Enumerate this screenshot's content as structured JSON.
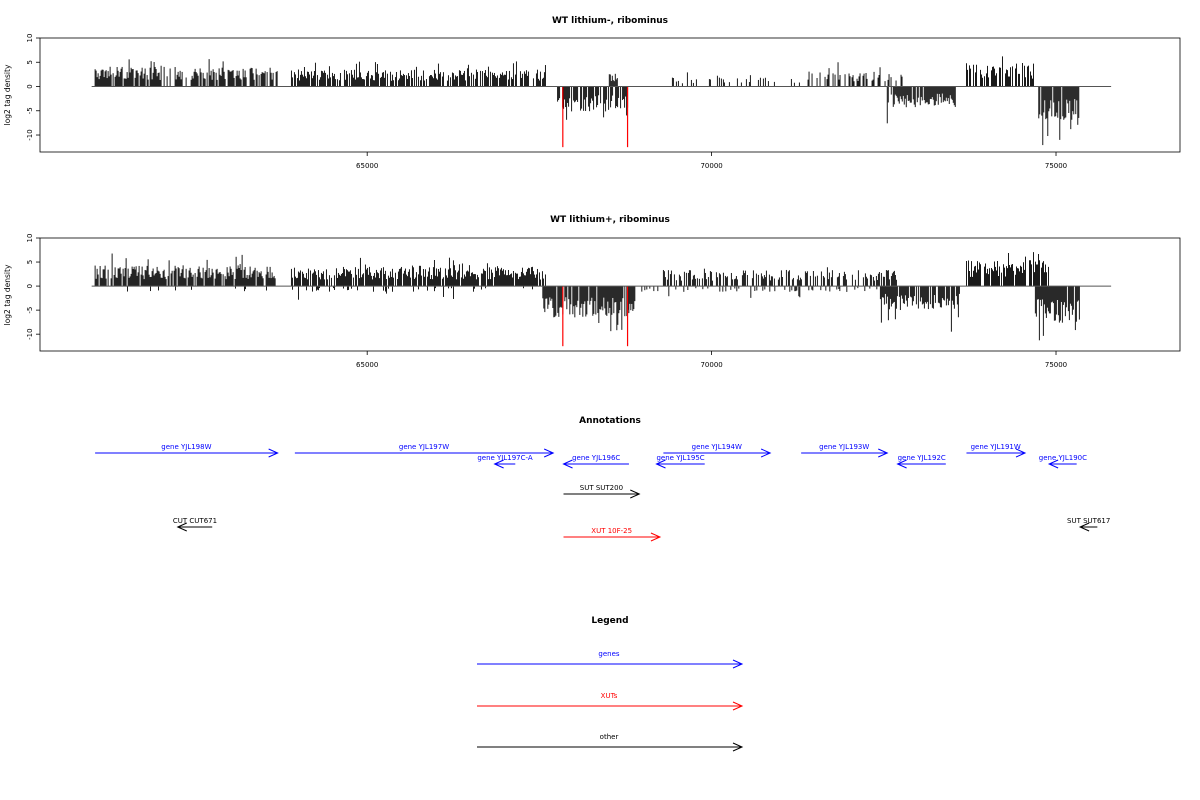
{
  "chart_data": [
    {
      "type": "bar",
      "title": "WT lithium-, ribominus",
      "ylabel": "log2 tag density",
      "xlim": [
        60250,
        76800
      ],
      "ylim": [
        -13.5,
        10
      ],
      "x_ticks": [
        65000,
        70000,
        75000
      ],
      "x_tick_labels": [
        "65000",
        "70000",
        "75000"
      ],
      "y_ticks": [
        10,
        5,
        0,
        -5,
        -10
      ],
      "y_tick_labels": [
        "10",
        "5",
        "0",
        "-5",
        "-10"
      ],
      "baseline_range": [
        61000,
        75800
      ],
      "positive_regions": [
        {
          "start": 61050,
          "end": 63700,
          "mean": 3.0,
          "max": 6.0,
          "density": 0.75
        },
        {
          "start": 63900,
          "end": 67600,
          "mean": 2.6,
          "max": 5.5,
          "density": 0.75
        },
        {
          "start": 68500,
          "end": 68650,
          "mean": 2.0,
          "max": 3.0,
          "density": 0.6
        },
        {
          "start": 69300,
          "end": 71400,
          "mean": 1.4,
          "max": 3.0,
          "density": 0.18
        },
        {
          "start": 71400,
          "end": 72800,
          "mean": 2.3,
          "max": 5.5,
          "density": 0.45
        },
        {
          "start": 73700,
          "end": 74700,
          "mean": 3.6,
          "max": 7.0,
          "density": 0.55
        }
      ],
      "negative_regions": [
        {
          "start": 67750,
          "end": 68800,
          "mean": -3.8,
          "min": -7.5,
          "density": 0.85
        },
        {
          "start": 72550,
          "end": 73550,
          "mean": -3.2,
          "min": -8.2,
          "density": 0.8
        },
        {
          "start": 74750,
          "end": 75350,
          "mean": -5.2,
          "min": -12.5,
          "density": 0.9
        }
      ],
      "highlights": [
        {
          "x": 67840,
          "y": -12.5,
          "color": "#ff0000"
        },
        {
          "x": 68780,
          "y": -12.5,
          "color": "#ff0000"
        }
      ]
    },
    {
      "type": "bar",
      "title": "WT lithium+, ribominus",
      "ylabel": "log2 tag density",
      "xlim": [
        60250,
        76800
      ],
      "ylim": [
        -13.5,
        10
      ],
      "x_ticks": [
        65000,
        70000,
        75000
      ],
      "x_tick_labels": [
        "65000",
        "70000",
        "75000"
      ],
      "y_ticks": [
        10,
        5,
        0,
        -5,
        -10
      ],
      "y_tick_labels": [
        "10",
        "5",
        "0",
        "-5",
        "-10"
      ],
      "baseline_range": [
        61000,
        75800
      ],
      "positive_regions": [
        {
          "start": 61050,
          "end": 63700,
          "mean": 3.2,
          "max": 7.0,
          "density": 0.85
        },
        {
          "start": 63900,
          "end": 67600,
          "mean": 3.0,
          "max": 6.0,
          "density": 0.85
        },
        {
          "start": 69300,
          "end": 72700,
          "mean": 2.5,
          "max": 6.0,
          "density": 0.6
        },
        {
          "start": 73700,
          "end": 74900,
          "mean": 4.0,
          "max": 9.0,
          "density": 0.8
        }
      ],
      "negative_regions": [
        {
          "start": 61200,
          "end": 67400,
          "mean": -0.9,
          "min": -3.0,
          "density": 0.12
        },
        {
          "start": 67550,
          "end": 68900,
          "mean": -4.8,
          "min": -10.0,
          "density": 0.9
        },
        {
          "start": 68900,
          "end": 72400,
          "mean": -0.9,
          "min": -2.5,
          "density": 0.2
        },
        {
          "start": 72450,
          "end": 73600,
          "mean": -3.6,
          "min": -9.5,
          "density": 0.85
        },
        {
          "start": 74700,
          "end": 75350,
          "mean": -5.8,
          "min": -12.0,
          "density": 0.9
        }
      ],
      "highlights": [
        {
          "x": 67840,
          "y": -12.5,
          "color": "#ff0000"
        },
        {
          "x": 68780,
          "y": -12.5,
          "color": "#ff0000"
        }
      ]
    }
  ],
  "annotations": {
    "title": "Annotations",
    "features": [
      {
        "label": "gene YJL198W",
        "start": 61050,
        "end": 63700,
        "strand": "+",
        "row": 0,
        "color": "#0000ff"
      },
      {
        "label": "gene YJL197W",
        "start": 63950,
        "end": 67700,
        "strand": "+",
        "row": 0,
        "color": "#0000ff"
      },
      {
        "label": "gene YJL197C-A",
        "start": 66850,
        "end": 67150,
        "strand": "-",
        "row": 1,
        "color": "#0000ff"
      },
      {
        "label": "gene YJL196C",
        "start": 67850,
        "end": 68800,
        "strand": "-",
        "row": 1,
        "color": "#0000ff"
      },
      {
        "label": "gene YJL195C",
        "start": 69200,
        "end": 69900,
        "strand": "-",
        "row": 1,
        "color": "#0000ff"
      },
      {
        "label": "gene YJL194W",
        "start": 69300,
        "end": 70850,
        "strand": "+",
        "row": 0,
        "color": "#0000ff"
      },
      {
        "label": "gene YJL193W",
        "start": 71300,
        "end": 72550,
        "strand": "+",
        "row": 0,
        "color": "#0000ff"
      },
      {
        "label": "gene YJL192C",
        "start": 72700,
        "end": 73400,
        "strand": "-",
        "row": 1,
        "color": "#0000ff"
      },
      {
        "label": "gene YJL191W",
        "start": 73700,
        "end": 74550,
        "strand": "+",
        "row": 0,
        "color": "#0000ff"
      },
      {
        "label": "gene YJL190C",
        "start": 74900,
        "end": 75300,
        "strand": "-",
        "row": 1,
        "color": "#0000ff"
      },
      {
        "label": "SUT SUT200",
        "start": 67850,
        "end": 68950,
        "strand": "+",
        "row": 2,
        "color": "#000000"
      },
      {
        "label": "CUT CUT671",
        "start": 62250,
        "end": 62750,
        "strand": "-",
        "row": 3,
        "color": "#000000"
      },
      {
        "label": "SUT SUT617",
        "start": 75350,
        "end": 75600,
        "strand": "-",
        "row": 3,
        "color": "#000000"
      },
      {
        "label": "XUT 10F-25",
        "start": 67850,
        "end": 69250,
        "strand": "+",
        "row": 4,
        "color": "#ff0000"
      }
    ]
  },
  "legend": {
    "title": "Legend",
    "items": [
      {
        "label": "genes",
        "color": "#0000ff"
      },
      {
        "label": "XUTs",
        "color": "#ff0000"
      },
      {
        "label": "other",
        "color": "#000000"
      }
    ]
  }
}
